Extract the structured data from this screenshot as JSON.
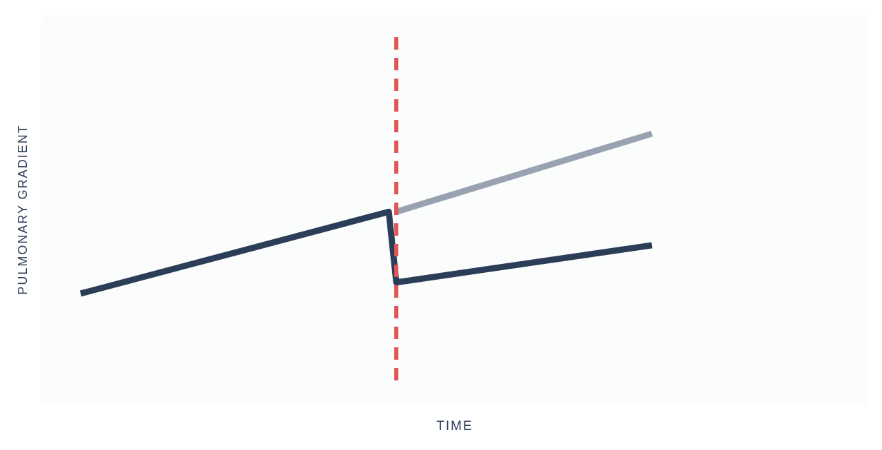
{
  "chart_data": {
    "type": "line",
    "title": "",
    "xlabel": "TIME",
    "ylabel": "PULMONARY GRADIENT",
    "xlim": [
      0,
      1
    ],
    "ylim": [
      0,
      1
    ],
    "grid": false,
    "legend": "none",
    "marker_x": 0.5,
    "marker_color": "#e05557",
    "series": [
      {
        "color": "#2c3e57",
        "points": [
          [
            0.08,
            0.3
          ],
          [
            0.49,
            0.52
          ],
          [
            0.5,
            0.33
          ],
          [
            0.84,
            0.43
          ]
        ]
      },
      {
        "color": "#98a2b0",
        "points": [
          [
            0.5,
            0.52
          ],
          [
            0.84,
            0.73
          ]
        ]
      }
    ]
  }
}
